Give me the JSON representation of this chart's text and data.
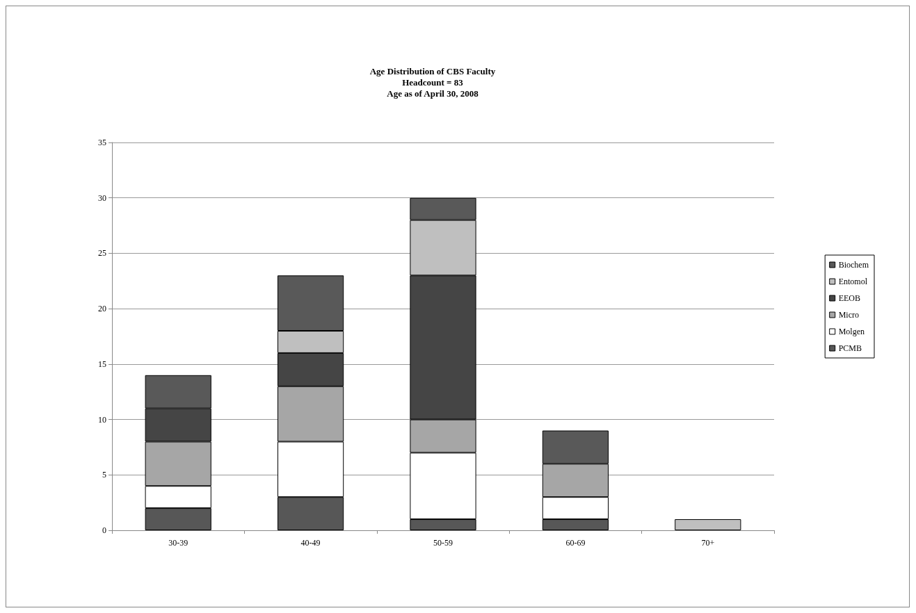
{
  "chart_data": {
    "type": "bar",
    "title": "Age Distribution of CBS Faculty\nHeadcount = 83\nAge as of April 30, 2008",
    "categories": [
      "30-39",
      "40-49",
      "50-59",
      "60-69",
      "70+"
    ],
    "stacked": true,
    "series": [
      {
        "name": "PCMB",
        "color": "#575757",
        "values": [
          2,
          3,
          1,
          1,
          0
        ]
      },
      {
        "name": "Molgen",
        "color": "#ffffff",
        "values": [
          2,
          5,
          6,
          2,
          0
        ]
      },
      {
        "name": "Micro",
        "color": "#a6a6a6",
        "values": [
          4,
          5,
          3,
          3,
          0
        ]
      },
      {
        "name": "EEOB",
        "color": "#454545",
        "values": [
          3,
          3,
          13,
          0,
          0
        ]
      },
      {
        "name": "Entomol",
        "color": "#bfbfbf",
        "values": [
          0,
          2,
          5,
          0,
          1
        ]
      },
      {
        "name": "Biochem",
        "color": "#595959",
        "values": [
          3,
          5,
          2,
          3,
          0
        ]
      }
    ],
    "ylim": [
      0,
      35
    ],
    "yticks": [
      0,
      5,
      10,
      15,
      20,
      25,
      30,
      35
    ],
    "grid": "y",
    "legend": "right"
  }
}
